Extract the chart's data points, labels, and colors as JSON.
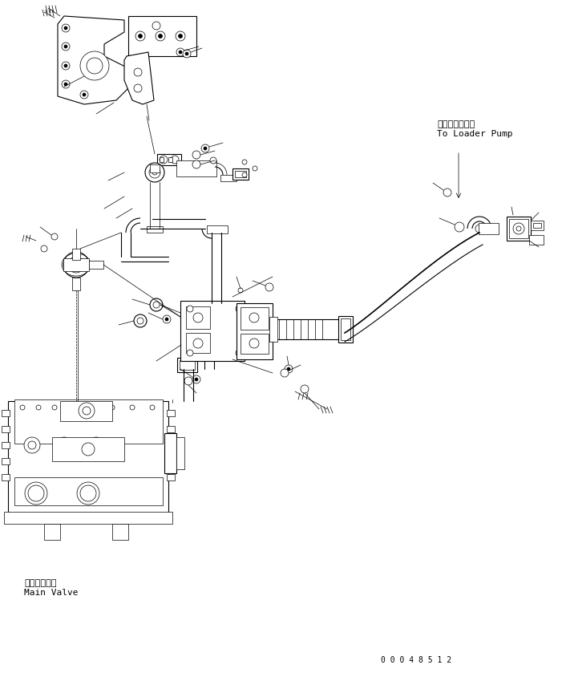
{
  "bg_color": "#ffffff",
  "line_color": "#000000",
  "fig_width": 7.01,
  "fig_height": 8.39,
  "dpi": 100,
  "label_loader_pump_ja": "ローダポンプへ",
  "label_loader_pump_en": "To Loader Pump",
  "label_main_valve_ja": "メインバルブ",
  "label_main_valve_en": "Main Valve",
  "serial_number": "0 0 0 4 8 5 1 2",
  "font_size_labels": 7.5,
  "font_size_serial": 7,
  "lw_thin": 0.5,
  "lw_med": 0.8,
  "lw_thick": 1.2
}
